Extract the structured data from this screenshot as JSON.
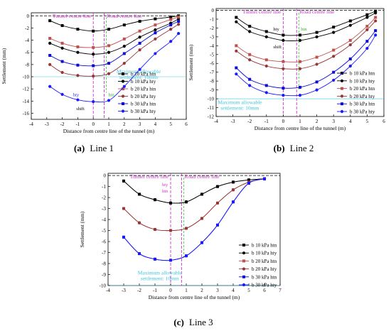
{
  "chart_data": [
    {
      "id": "line1",
      "type": "line",
      "caption_tag": "(a)",
      "caption_text": "Line 1",
      "xlabel": "Distance from centre line of the tunnel (m)",
      "ylabel": "Settlement (mm)",
      "xlim": [
        -4,
        6
      ],
      "ylim": [
        -17,
        0.5
      ],
      "x_ticks": [
        -4,
        -3,
        -2,
        -1,
        0,
        1,
        2,
        3,
        4,
        5,
        6
      ],
      "y_ticks": [
        0,
        -2,
        -4,
        -6,
        -8,
        -10,
        -12,
        -14,
        -16
      ],
      "tunnel_centre_label": "Tunnel centre line",
      "road_centre_label": "Road centre line",
      "tunnel_centre_x": 0,
      "road_centre_x": 0.7,
      "allowable_text_1": "Maximum allowable",
      "allowable_text_2": "settlement: 10mm",
      "allowable_y": -10,
      "hty_label": "hty",
      "htn_label": "htn",
      "shift_label": "shift",
      "legend_position": "right-bottom",
      "series": [
        {
          "name": "b 10 kPa htn",
          "color": "#000000",
          "marker": "square",
          "x": [
            -2.8,
            -2,
            -1,
            0,
            1,
            2,
            3,
            4,
            5,
            5.5
          ],
          "y": [
            -0.8,
            -1.6,
            -2.2,
            -2.5,
            -2.2,
            -1.5,
            -0.9,
            -0.5,
            -0.2,
            0
          ]
        },
        {
          "name": "b 10 kPa hty",
          "color": "#000000",
          "marker": "circle",
          "x": [
            -2.8,
            -2,
            -1,
            0,
            1,
            2,
            3,
            4,
            5,
            5.5
          ],
          "y": [
            -4.5,
            -5.3,
            -6,
            -6.3,
            -6,
            -5,
            -3.5,
            -2.3,
            -1.2,
            -0.5
          ]
        },
        {
          "name": "b 20 kPa htn",
          "color": "#c0504d",
          "marker": "square",
          "x": [
            -2.8,
            -2,
            -1,
            0,
            1,
            2,
            3,
            4,
            5,
            5.5
          ],
          "y": [
            -3.7,
            -4.5,
            -5.1,
            -5.2,
            -4.9,
            -3.8,
            -2.5,
            -1.5,
            -0.6,
            -0.2
          ]
        },
        {
          "name": "b 20 kPa hty",
          "color": "#953735",
          "marker": "circle",
          "x": [
            -2.8,
            -2,
            -1,
            0,
            1,
            2,
            3,
            4,
            5,
            5.5
          ],
          "y": [
            -8,
            -9.3,
            -9.8,
            -9.9,
            -9.5,
            -7.8,
            -5.6,
            -3.8,
            -2.2,
            -1.4
          ]
        },
        {
          "name": "b 30 kPa htn",
          "color": "#0a0ad8",
          "marker": "square",
          "x": [
            -2.8,
            -2,
            -1,
            0,
            1,
            2,
            3,
            4,
            5,
            5.5
          ],
          "y": [
            -6.5,
            -7.5,
            -8.1,
            -8.2,
            -7.8,
            -6.2,
            -4.5,
            -2.8,
            -1.5,
            -0.9
          ]
        },
        {
          "name": "b 30 kPa hty",
          "color": "#1a1aff",
          "marker": "circle",
          "x": [
            -2.8,
            -2,
            -1,
            0,
            1,
            2,
            3,
            4,
            5,
            5.5
          ],
          "y": [
            -11.6,
            -12.9,
            -13.8,
            -14.1,
            -13.9,
            -11.6,
            -8.8,
            -6.2,
            -4.2,
            -2.9
          ]
        }
      ]
    },
    {
      "id": "line2",
      "type": "line",
      "caption_tag": "(b)",
      "caption_text": "Line 2",
      "xlabel": "Distance from centre line of the tunnel (m)",
      "ylabel": "Settlement (mm)",
      "xlim": [
        -4,
        6
      ],
      "ylim": [
        -12,
        0.2
      ],
      "x_ticks": [
        -4,
        -3,
        -2,
        -1,
        0,
        1,
        2,
        3,
        4,
        5,
        6
      ],
      "y_ticks": [
        0,
        -1,
        -2,
        -3,
        -4,
        -5,
        -6,
        -7,
        -8,
        -9,
        -10,
        -11,
        -12
      ],
      "tunnel_centre_label": "Tunnel centre line",
      "road_centre_label": "Road centre line",
      "tunnel_centre_x": 0,
      "road_centre_x": 0.8,
      "allowable_text_1": "Maximum allowable",
      "allowable_text_2": "settlement: 10mm",
      "allowable_y": -10,
      "hty_label": "hty",
      "htn_label": "htn",
      "shift_label": "shift",
      "legend_position": "right-bottom",
      "series": [
        {
          "name": "b 10 kPa htn",
          "color": "#000000",
          "marker": "square",
          "x": [
            -2.8,
            -2,
            -1,
            0,
            1,
            2,
            3,
            4,
            5,
            5.5
          ],
          "y": [
            -0.8,
            -1.8,
            -2.4,
            -2.8,
            -2.8,
            -2.5,
            -1.9,
            -1.2,
            -0.5,
            -0.1
          ]
        },
        {
          "name": "b 10 kPa hty",
          "color": "#000000",
          "marker": "circle",
          "x": [
            -2.8,
            -2,
            -1,
            0,
            1,
            2,
            3,
            4,
            5,
            5.5
          ],
          "y": [
            -1.3,
            -2.4,
            -3,
            -3.4,
            -3.4,
            -3,
            -2.5,
            -1.7,
            -0.8,
            -0.3
          ]
        },
        {
          "name": "b 20 kPa htn",
          "color": "#c0504d",
          "marker": "square",
          "x": [
            -2.8,
            -2,
            -1,
            0,
            1,
            2,
            3,
            4,
            5,
            5.5
          ],
          "y": [
            -4,
            -5,
            -5.6,
            -5.8,
            -5.8,
            -5.3,
            -4.5,
            -3.4,
            -1.8,
            -0.8
          ]
        },
        {
          "name": "b 20 kPa hty",
          "color": "#953735",
          "marker": "circle",
          "x": [
            -2.8,
            -2,
            -1,
            0,
            1,
            2,
            3,
            4,
            5,
            5.5
          ],
          "y": [
            -4.6,
            -5.6,
            -6.3,
            -6.6,
            -6.6,
            -6.1,
            -5.2,
            -3.9,
            -2.2,
            -1.2
          ]
        },
        {
          "name": "b 30 kPa htn",
          "color": "#0a0ad8",
          "marker": "square",
          "x": [
            -2.8,
            -2,
            -1,
            0,
            1,
            2,
            3,
            4,
            5,
            5.5
          ],
          "y": [
            -6.5,
            -7.8,
            -8.5,
            -8.8,
            -8.7,
            -8.1,
            -7,
            -5.5,
            -3.5,
            -2.3
          ]
        },
        {
          "name": "b 30 kPa hty",
          "color": "#1a1aff",
          "marker": "circle",
          "x": [
            -2.8,
            -2,
            -1,
            0,
            1,
            2,
            3,
            4,
            5,
            5.5
          ],
          "y": [
            -7.2,
            -8.5,
            -9.3,
            -9.6,
            -9.6,
            -9,
            -7.9,
            -6.3,
            -4.3,
            -2.8
          ]
        }
      ]
    },
    {
      "id": "line3",
      "type": "line",
      "caption_tag": "(c)",
      "caption_text": "Line 3",
      "xlabel": "Distance from centre line of the tunnel (m)",
      "ylabel": "Settlement (mm)",
      "xlim": [
        -4,
        7
      ],
      "ylim": [
        -10,
        0.2
      ],
      "x_ticks": [
        -4,
        -3,
        -2,
        -1,
        0,
        1,
        2,
        3,
        4,
        5,
        6,
        7
      ],
      "y_ticks": [
        0,
        -1,
        -2,
        -3,
        -4,
        -5,
        -6,
        -7,
        -8,
        -9,
        -10
      ],
      "tunnel_centre_label": "Tunnel centre line",
      "road_centre_label": "Road centre line",
      "tunnel_centre_x": 0,
      "road_centre_x": 0.7,
      "allowable_text_1": "Maximum allowable",
      "allowable_text_2": "settlement: 10mm",
      "allowable_y": -10,
      "hty_label": "hty",
      "htn_label": "htn",
      "shift_label": "",
      "legend_position": "right-bottom",
      "series": [
        {
          "name": "b 10 kPa htn",
          "color": "#000000",
          "marker": "square",
          "x": [
            -3,
            -2,
            -1,
            0,
            1,
            2,
            3,
            4,
            5,
            6
          ],
          "y": [
            -0.5,
            -1.7,
            -2.2,
            -2.5,
            -2.4,
            -1.7,
            -1,
            -0.6,
            -0.4,
            -0.3
          ]
        },
        {
          "name": "b 10 kPa hty",
          "color": "#000000",
          "marker": "circle",
          "x": [
            -3,
            -2,
            -1,
            0,
            1,
            2,
            3,
            4,
            5,
            6
          ],
          "y": [
            -0.5,
            -1.7,
            -2.2,
            -2.5,
            -2.4,
            -1.7,
            -1,
            -0.6,
            -0.4,
            -0.3
          ]
        },
        {
          "name": "b 20 kPa htn",
          "color": "#c0504d",
          "marker": "square",
          "x": [
            -3,
            -2,
            -1,
            0,
            1,
            2,
            3,
            4,
            5,
            6
          ],
          "y": [
            -3,
            -4.3,
            -4.9,
            -5,
            -4.8,
            -3.9,
            -2.5,
            -1.3,
            -0.6,
            -0.3
          ]
        },
        {
          "name": "b 20 kPa hty",
          "color": "#953735",
          "marker": "circle",
          "x": [
            -3,
            -2,
            -1,
            0,
            1,
            2,
            3,
            4,
            5,
            6
          ],
          "y": [
            -3,
            -4.3,
            -4.9,
            -5,
            -4.8,
            -3.9,
            -2.5,
            -1.3,
            -0.6,
            -0.3
          ]
        },
        {
          "name": "b 30 kPa htn",
          "color": "#0a0ad8",
          "marker": "square",
          "x": [
            -3,
            -2,
            -1,
            0,
            1,
            2,
            3,
            4,
            5,
            6
          ],
          "y": [
            -5.6,
            -7.1,
            -7.6,
            -7.7,
            -7.3,
            -6.1,
            -4.5,
            -2.4,
            -0.7,
            -0.3
          ]
        },
        {
          "name": "b 30 kPa hty",
          "color": "#1a1aff",
          "marker": "circle",
          "x": [
            -3,
            -2,
            -1,
            0,
            1,
            2,
            3,
            4,
            5,
            6
          ],
          "y": [
            -5.6,
            -7.1,
            -7.6,
            -7.7,
            -7.3,
            -6.1,
            -4.5,
            -2.4,
            -0.7,
            -0.3
          ]
        }
      ]
    }
  ]
}
